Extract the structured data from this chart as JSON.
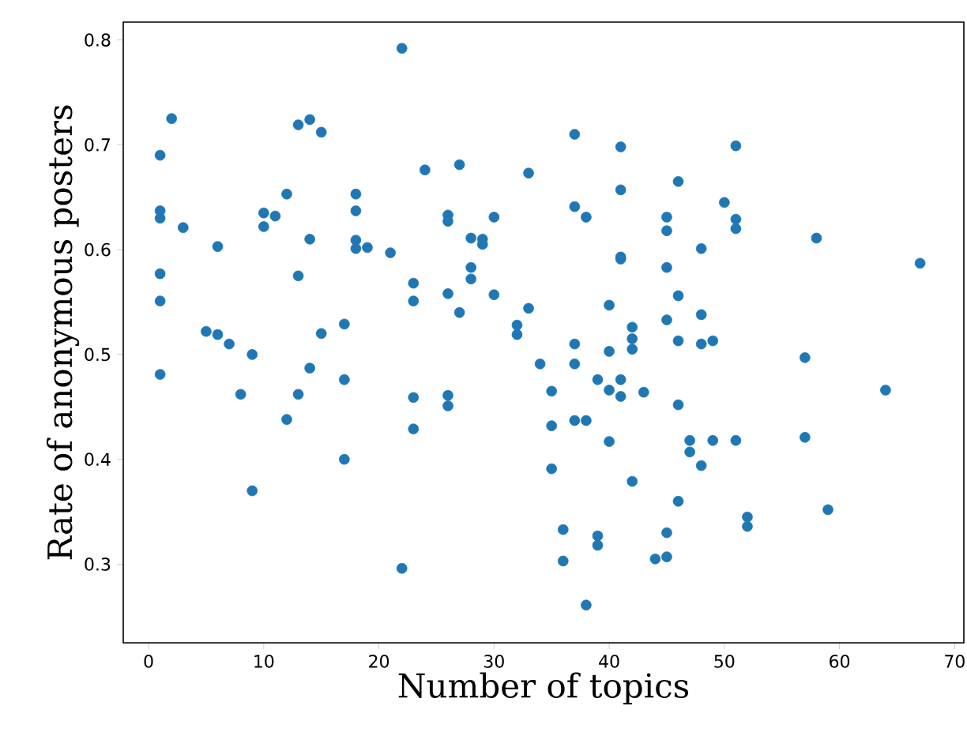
{
  "chart_data": {
    "type": "scatter",
    "xlabel": "Number of topics",
    "ylabel": "Rate of anonymous posters",
    "color": "#1f77b4",
    "xlim": [
      -2.2,
      70.8
    ],
    "ylim": [
      0.225,
      0.817
    ],
    "xticks": [
      0,
      10,
      20,
      30,
      40,
      50,
      60,
      70
    ],
    "yticks": [
      0.3,
      0.4,
      0.5,
      0.6,
      0.7,
      0.8
    ],
    "x": [
      1,
      1,
      1,
      1,
      1,
      1,
      2,
      3,
      5,
      6,
      6,
      7,
      8,
      9,
      9,
      10,
      10,
      11,
      12,
      12,
      13,
      13,
      13,
      14,
      14,
      14,
      15,
      15,
      17,
      17,
      17,
      18,
      18,
      18,
      18,
      19,
      21,
      22,
      22,
      23,
      23,
      23,
      23,
      24,
      26,
      26,
      26,
      26,
      26,
      27,
      27,
      28,
      28,
      28,
      29,
      29,
      30,
      30,
      32,
      32,
      33,
      33,
      34,
      35,
      35,
      35,
      36,
      36,
      37,
      37,
      37,
      37,
      37,
      38,
      38,
      38,
      39,
      39,
      39,
      40,
      40,
      40,
      40,
      41,
      41,
      41,
      41,
      41,
      41,
      42,
      42,
      42,
      42,
      43,
      44,
      45,
      45,
      45,
      45,
      45,
      45,
      46,
      46,
      46,
      46,
      46,
      47,
      47,
      48,
      48,
      48,
      48,
      49,
      49,
      50,
      51,
      51,
      51,
      51,
      52,
      52,
      57,
      57,
      58,
      59,
      64,
      67
    ],
    "values": [
      0.69,
      0.637,
      0.63,
      0.577,
      0.551,
      0.481,
      0.725,
      0.621,
      0.522,
      0.519,
      0.603,
      0.51,
      0.462,
      0.5,
      0.37,
      0.635,
      0.622,
      0.632,
      0.653,
      0.438,
      0.719,
      0.575,
      0.462,
      0.724,
      0.61,
      0.487,
      0.712,
      0.52,
      0.529,
      0.476,
      0.4,
      0.653,
      0.637,
      0.609,
      0.601,
      0.602,
      0.597,
      0.792,
      0.296,
      0.568,
      0.551,
      0.459,
      0.429,
      0.676,
      0.633,
      0.627,
      0.558,
      0.461,
      0.451,
      0.681,
      0.54,
      0.611,
      0.583,
      0.572,
      0.61,
      0.605,
      0.631,
      0.557,
      0.528,
      0.519,
      0.673,
      0.544,
      0.491,
      0.465,
      0.432,
      0.391,
      0.333,
      0.303,
      0.71,
      0.641,
      0.51,
      0.491,
      0.437,
      0.631,
      0.437,
      0.261,
      0.476,
      0.327,
      0.318,
      0.547,
      0.503,
      0.466,
      0.417,
      0.698,
      0.657,
      0.593,
      0.591,
      0.476,
      0.46,
      0.526,
      0.515,
      0.505,
      0.379,
      0.464,
      0.305,
      0.631,
      0.618,
      0.583,
      0.533,
      0.33,
      0.307,
      0.665,
      0.556,
      0.513,
      0.452,
      0.36,
      0.418,
      0.407,
      0.601,
      0.538,
      0.51,
      0.394,
      0.513,
      0.418,
      0.645,
      0.699,
      0.629,
      0.62,
      0.418,
      0.345,
      0.336,
      0.497,
      0.421,
      0.611,
      0.352,
      0.466,
      0.587
    ]
  }
}
